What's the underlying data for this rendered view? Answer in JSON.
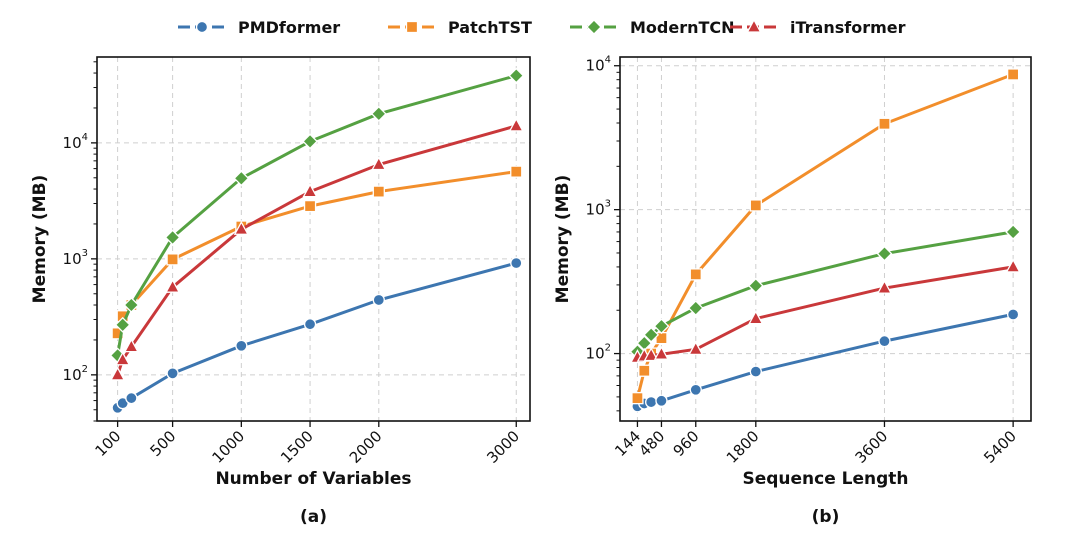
{
  "legend": [
    {
      "name": "PMDformer",
      "color": "#3d76b0",
      "marker": "circle"
    },
    {
      "name": "PatchTST",
      "color": "#f28e2b",
      "marker": "square"
    },
    {
      "name": "ModernTCN",
      "color": "#55a142",
      "marker": "diamond"
    },
    {
      "name": "iTransformer",
      "color": "#c9383a",
      "marker": "triangle"
    }
  ],
  "chart_data": [
    {
      "type": "line",
      "panel_label": "(a)",
      "xlabel": "Number of Variables",
      "ylabel": "Memory (MB)",
      "yscale": "log",
      "xlim": [
        -50,
        3100
      ],
      "ylim": [
        40,
        55000
      ],
      "xticks": [
        100,
        500,
        1000,
        1500,
        2000,
        3000
      ],
      "yticks": [
        {
          "value": 100,
          "base": "10",
          "exp": "2"
        },
        {
          "value": 1000,
          "base": "10",
          "exp": "3"
        },
        {
          "value": 10000,
          "base": "10",
          "exp": "4"
        }
      ],
      "grid": true,
      "series": [
        {
          "name": "PMDformer",
          "x": [
            100,
            137,
            200,
            500,
            1000,
            1500,
            2000,
            3000
          ],
          "values": [
            52,
            57,
            63,
            103,
            178,
            273,
            442,
            920
          ]
        },
        {
          "name": "PatchTST",
          "x": [
            100,
            137,
            200,
            500,
            1000,
            1500,
            2000,
            3000
          ],
          "values": [
            228,
            320,
            400,
            990,
            1900,
            2850,
            3800,
            5650
          ]
        },
        {
          "name": "ModernTCN",
          "x": [
            100,
            137,
            200,
            500,
            1000,
            1500,
            2000,
            3000
          ],
          "values": [
            147,
            270,
            400,
            1530,
            4950,
            10300,
            17800,
            38000
          ]
        },
        {
          "name": "iTransformer",
          "x": [
            100,
            137,
            200,
            500,
            1000,
            1500,
            2000,
            3000
          ],
          "values": [
            100,
            135,
            175,
            570,
            1800,
            3800,
            6500,
            14000
          ]
        }
      ]
    },
    {
      "type": "line",
      "panel_label": "(b)",
      "xlabel": "Sequence Length",
      "ylabel": "Memory (MB)",
      "yscale": "log",
      "xlim": [
        -100,
        5650
      ],
      "ylim": [
        34,
        11500
      ],
      "xticks": [
        144,
        480,
        960,
        1800,
        3600,
        5400
      ],
      "yticks": [
        {
          "value": 100,
          "base": "10",
          "exp": "2"
        },
        {
          "value": 1000,
          "base": "10",
          "exp": "3"
        },
        {
          "value": 10000,
          "base": "10",
          "exp": "4"
        }
      ],
      "grid": true,
      "series": [
        {
          "name": "PMDformer",
          "x": [
            144,
            240,
            336,
            480,
            960,
            1800,
            3600,
            5400
          ],
          "values": [
            43,
            45,
            46,
            47,
            56,
            75,
            122,
            187
          ]
        },
        {
          "name": "PatchTST",
          "x": [
            144,
            240,
            336,
            480,
            960,
            1800,
            3600,
            5400
          ],
          "values": [
            49,
            76,
            100,
            128,
            355,
            1070,
            3950,
            8700
          ]
        },
        {
          "name": "ModernTCN",
          "x": [
            144,
            240,
            336,
            480,
            960,
            1800,
            3600,
            5400
          ],
          "values": [
            103,
            118,
            135,
            155,
            207,
            296,
            495,
            700
          ]
        },
        {
          "name": "iTransformer",
          "x": [
            144,
            240,
            336,
            480,
            960,
            1800,
            3600,
            5400
          ],
          "values": [
            94,
            96,
            97,
            99,
            107,
            175,
            285,
            400
          ]
        }
      ]
    }
  ]
}
